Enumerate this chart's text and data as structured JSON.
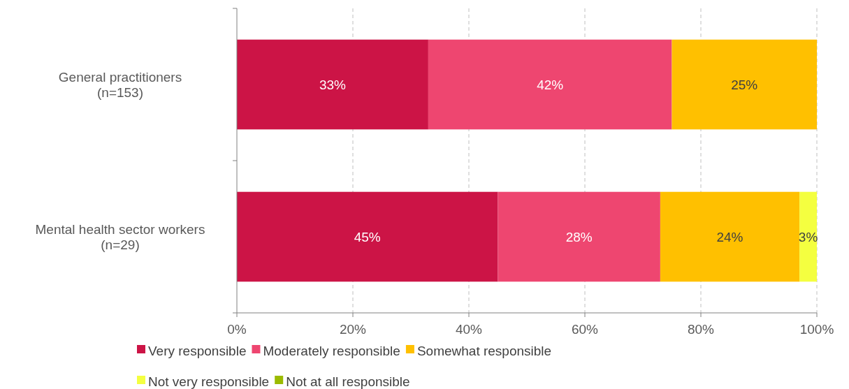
{
  "chart_data": {
    "type": "bar",
    "orientation": "horizontal",
    "stacked": true,
    "categories": [
      "General practitioners\n(n=153)",
      "Mental health sector workers\n(n=29)"
    ],
    "series": [
      {
        "name": "Very responsible",
        "color": "#cc1446",
        "values": [
          33,
          45
        ],
        "value_labels": [
          "33%",
          "45%"
        ]
      },
      {
        "name": "Moderately responsible",
        "color": "#ee4670",
        "values": [
          42,
          28
        ],
        "value_labels": [
          "42%",
          "28%"
        ]
      },
      {
        "name": "Somewhat responsible",
        "color": "#ffc000",
        "values": [
          25,
          24
        ],
        "value_labels": [
          "25%",
          "24%"
        ]
      },
      {
        "name": "Not very responsible",
        "color": "#f4ff40",
        "values": [
          0,
          3
        ],
        "value_labels": [
          null,
          "3%"
        ]
      },
      {
        "name": "Not at all responsible",
        "color": "#9bbb00",
        "values": [
          0,
          0
        ],
        "value_labels": [
          null,
          null
        ]
      }
    ],
    "xlim": [
      0,
      100
    ],
    "xticks": [
      {
        "value": 0,
        "label": "0%"
      },
      {
        "value": 20,
        "label": "20%"
      },
      {
        "value": 40,
        "label": "40%"
      },
      {
        "value": 60,
        "label": "60%"
      },
      {
        "value": 80,
        "label": "80%"
      },
      {
        "value": 100,
        "label": "100%"
      }
    ],
    "grid": "x",
    "legend": "bottom"
  }
}
